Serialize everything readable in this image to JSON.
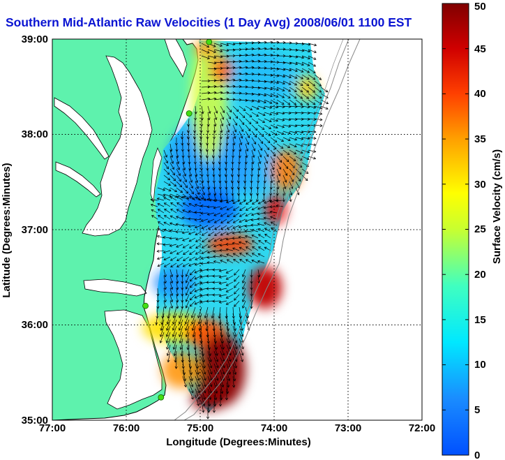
{
  "title": "Southern Mid-Atlantic Raw Velocities (1 Day Avg) 2008/06/01 1100 EST",
  "map": {
    "xlabel": "Longitude (Degrees:Minutes)",
    "ylabel": "Latitude (Degrees:Minutes)",
    "lon_ticks": [
      "77:00",
      "76:00",
      "75:00",
      "74:00",
      "73:00",
      "72:00"
    ],
    "lat_ticks": [
      "39:00",
      "38:00",
      "37:00",
      "36:00",
      "35:00"
    ],
    "lon_range": [
      -77,
      -72
    ],
    "lat_range": [
      35,
      39
    ],
    "grid": true
  },
  "colorbar": {
    "label": "Surface Velocity (cm/s)",
    "ticks": [
      "0",
      "5",
      "10",
      "15",
      "20",
      "25",
      "30",
      "35",
      "40",
      "45",
      "50"
    ],
    "range": [
      0,
      50
    ]
  },
  "colors": {
    "land": "#5ef2ad",
    "title": "#0a14d2",
    "sites": "#44dd11",
    "bathymetry": "#888888"
  },
  "hf_radar_sites": [
    {
      "lon": -74.88,
      "lat": 38.97
    },
    {
      "lon": -75.15,
      "lat": 38.22
    },
    {
      "lon": -75.74,
      "lat": 36.2
    },
    {
      "lon": -75.53,
      "lat": 35.24
    }
  ]
}
